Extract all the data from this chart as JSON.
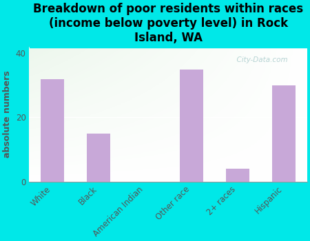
{
  "categories": [
    "White",
    "Black",
    "American Indian",
    "Other race",
    "2+ races",
    "Hispanic"
  ],
  "values": [
    32,
    15,
    0,
    35,
    4,
    30
  ],
  "bar_color": "#c8a8d8",
  "title": "Breakdown of poor residents within races\n(income below poverty level) in Rock\nIsland, WA",
  "ylabel": "absolute numbers",
  "ylim": [
    0,
    42
  ],
  "yticks": [
    0,
    20,
    40
  ],
  "bg_outer": "#00e8e8",
  "bg_inner_top_left": "#d8f0d8",
  "bg_inner_bottom_right": "#f5fff5",
  "watermark": "  City-Data.com",
  "title_fontsize": 12,
  "ylabel_fontsize": 9,
  "tick_fontsize": 8.5,
  "ylabel_color": "#555555",
  "tick_label_color": "#555555"
}
